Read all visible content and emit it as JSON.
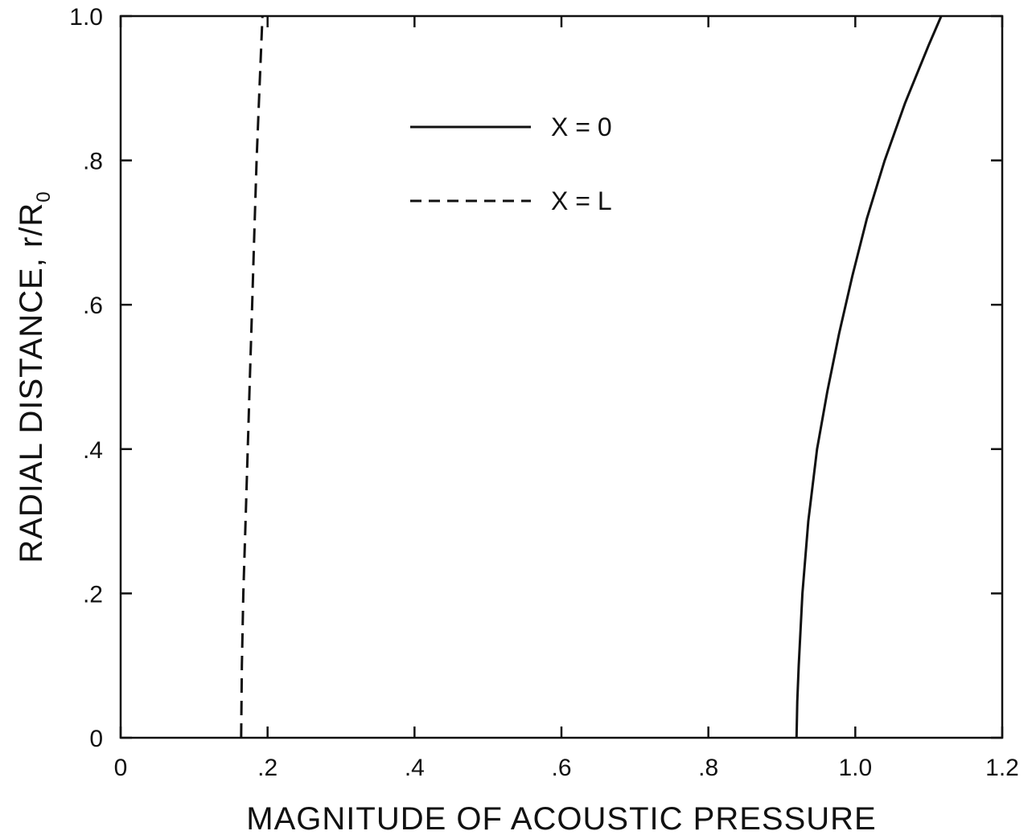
{
  "chart_data": {
    "type": "line",
    "title": "",
    "xlabel": "MAGNITUDE OF ACOUSTIC PRESSURE",
    "ylabel": "RADIAL DISTANCE, r/R",
    "ylabel_subscript": "0",
    "xlim": [
      0,
      1.2
    ],
    "ylim": [
      0,
      1.0
    ],
    "xticks": [
      0,
      0.2,
      0.4,
      0.6,
      0.8,
      1.0,
      1.2
    ],
    "xtick_labels": [
      "0",
      ".2",
      ".4",
      ".6",
      ".8",
      "1.0",
      "1.2"
    ],
    "yticks": [
      0,
      0.2,
      0.4,
      0.6,
      0.8,
      1.0
    ],
    "ytick_labels": [
      "0",
      ".2",
      ".4",
      ".6",
      ".8",
      "1.0"
    ],
    "grid": false,
    "legend": {
      "placement": "upper-center"
    },
    "series": [
      {
        "name": "X = 0",
        "style": "solid",
        "color": "#111111",
        "x": [
          0.92,
          0.921,
          0.923,
          0.928,
          0.936,
          0.948,
          0.962,
          0.978,
          0.996,
          1.016,
          1.04,
          1.068,
          1.1,
          1.117
        ],
        "y": [
          0.0,
          0.05,
          0.1,
          0.2,
          0.3,
          0.4,
          0.48,
          0.56,
          0.64,
          0.72,
          0.8,
          0.88,
          0.96,
          1.0
        ]
      },
      {
        "name": "X = L",
        "style": "dashed",
        "color": "#111111",
        "x": [
          0.164,
          0.165,
          0.167,
          0.17,
          0.173,
          0.176,
          0.179,
          0.182,
          0.185,
          0.189,
          0.193
        ],
        "y": [
          0.0,
          0.1,
          0.2,
          0.3,
          0.4,
          0.5,
          0.6,
          0.7,
          0.8,
          0.9,
          1.0
        ]
      }
    ]
  }
}
